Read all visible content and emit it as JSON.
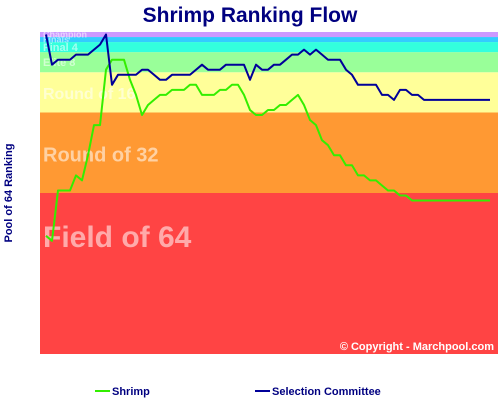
{
  "chart_data": {
    "type": "line",
    "title": "Shrimp Ranking Flow",
    "ylabel": "Pool of 64 Ranking",
    "xlabel": "",
    "ylim": [
      64,
      1
    ],
    "bands": [
      {
        "name": "Field of 64",
        "from": 33,
        "to": 64,
        "color": "#ff4444"
      },
      {
        "name": "Round of 32",
        "from": 17,
        "to": 32,
        "color": "#ff9933"
      },
      {
        "name": "Round of 16",
        "from": 9,
        "to": 16,
        "color": "#ffff99"
      },
      {
        "name": "Elite 8",
        "from": 5,
        "to": 8,
        "color": "#99ff99"
      },
      {
        "name": "Final 4",
        "from": 3,
        "to": 4,
        "color": "#33ffdd"
      },
      {
        "name": "Finals",
        "from": 2,
        "to": 2,
        "color": "#33ccff"
      },
      {
        "name": "Champion",
        "from": 1,
        "to": 1,
        "color": "#cc99ff"
      }
    ],
    "x": [
      0,
      1,
      2,
      3,
      4,
      5,
      6,
      7,
      8,
      9,
      10,
      11,
      12,
      13,
      14,
      15,
      16,
      17,
      18,
      19,
      20,
      21,
      22,
      23,
      24,
      25,
      26,
      27,
      28,
      29,
      30,
      31,
      32,
      33,
      34,
      35,
      36,
      37,
      38,
      39,
      40,
      41,
      42,
      43,
      44,
      45,
      46,
      47,
      48,
      49,
      50,
      51,
      52,
      53,
      54,
      55,
      56,
      57,
      58,
      59,
      60,
      61,
      62,
      63,
      64,
      65,
      66,
      67,
      68,
      69,
      70,
      71,
      72,
      73,
      74
    ],
    "series": [
      {
        "name": "Shrimp",
        "color": "#33ee00",
        "values": [
          41,
          42,
          32,
          32,
          32,
          29,
          30,
          25,
          19,
          19,
          8,
          6,
          6,
          6,
          10,
          13,
          17,
          15,
          14,
          13,
          13,
          12,
          12,
          12,
          11,
          11,
          13,
          13,
          13,
          12,
          12,
          11,
          11,
          13,
          16,
          17,
          17,
          16,
          16,
          15,
          15,
          14,
          13,
          15,
          18,
          19,
          22,
          23,
          25,
          25,
          27,
          27,
          29,
          29,
          30,
          30,
          31,
          32,
          32,
          33,
          33,
          34,
          34,
          34,
          34,
          34,
          34,
          34,
          34,
          34,
          34,
          34,
          34,
          34,
          34
        ]
      },
      {
        "name": "Selection Committee",
        "color": "#000099",
        "values": [
          1,
          7,
          6,
          6,
          6,
          5,
          5,
          5,
          4,
          3,
          1,
          11,
          9,
          9,
          9,
          9,
          8,
          8,
          9,
          10,
          10,
          9,
          9,
          9,
          9,
          8,
          7,
          8,
          8,
          8,
          7,
          7,
          7,
          7,
          10,
          7,
          8,
          8,
          7,
          7,
          6,
          5,
          5,
          4,
          5,
          4,
          5,
          6,
          6,
          6,
          8,
          9,
          11,
          11,
          11,
          11,
          13,
          13,
          14,
          12,
          12,
          13,
          13,
          14,
          14,
          14,
          14,
          14,
          14,
          14,
          14,
          14,
          14,
          14,
          14
        ]
      }
    ]
  },
  "copyright": "© Copyright - Marchpool.com",
  "colors": {
    "shrimp": "#33ee00",
    "committee": "#000099",
    "title": "#000080"
  }
}
